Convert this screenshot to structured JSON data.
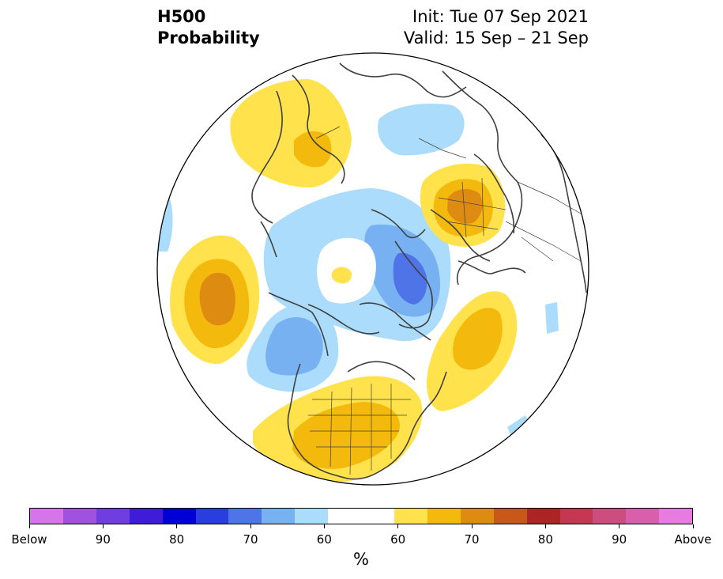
{
  "title": {
    "variable": "H500",
    "product": "Probability",
    "init": "Init: Tue 07 Sep 2021",
    "valid": "Valid: 15 Sep – 21 Sep"
  },
  "colorbar": {
    "colors": [
      "#d575e9",
      "#9f51df",
      "#6f3de0",
      "#3f1dd8",
      "#0000d6",
      "#2a3ddf",
      "#4f74e7",
      "#78b1f2",
      "#acdcfc",
      "#ffffff",
      "#ffffff",
      "#ffe24c",
      "#f3b90c",
      "#de8b12",
      "#c85818",
      "#ad2424",
      "#c63851",
      "#cd4d7f",
      "#d95fac",
      "#e77bdf"
    ],
    "labels": [
      "Below",
      "90",
      "80",
      "70",
      "60",
      "60",
      "70",
      "80",
      "90",
      "Above"
    ],
    "unit": "%"
  },
  "map": {
    "projection": "north-polar-stereographic",
    "region": "Northern Hemisphere",
    "above_color": "#ffe24c",
    "below_color": "#acdcfc"
  }
}
